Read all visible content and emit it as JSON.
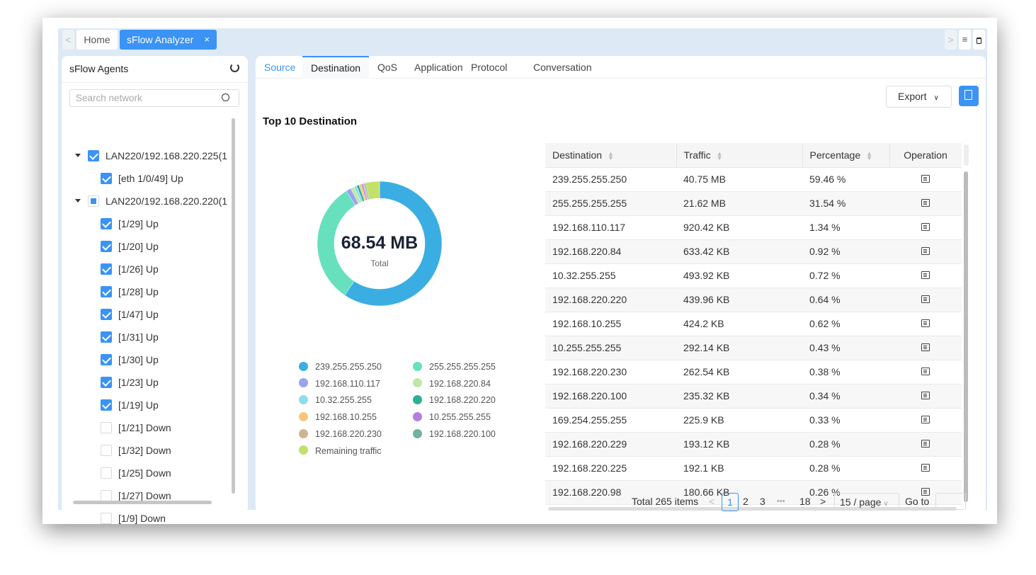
{
  "window_tabs": {
    "back": "<",
    "home": "Home",
    "active": "sFlow Analyzer",
    "close": "×",
    "forward": ">"
  },
  "sidebar": {
    "title": "sFlow Agents",
    "search_placeholder": "Search network",
    "tree": [
      {
        "label": "LAN220/192.168.220.225(1",
        "level": 1,
        "state": "checked",
        "expanded": true
      },
      {
        "label": "[eth 1/0/49] Up",
        "level": 2,
        "state": "checked"
      },
      {
        "label": "LAN220/192.168.220.220(1",
        "level": 1,
        "state": "partial",
        "expanded": true
      },
      {
        "label": "[1/29] Up",
        "level": 2,
        "state": "checked"
      },
      {
        "label": "[1/20] Up",
        "level": 2,
        "state": "checked"
      },
      {
        "label": "[1/26] Up",
        "level": 2,
        "state": "checked"
      },
      {
        "label": "[1/28] Up",
        "level": 2,
        "state": "checked"
      },
      {
        "label": "[1/47] Up",
        "level": 2,
        "state": "checked"
      },
      {
        "label": "[1/31] Up",
        "level": 2,
        "state": "checked"
      },
      {
        "label": "[1/30] Up",
        "level": 2,
        "state": "checked"
      },
      {
        "label": "[1/23] Up",
        "level": 2,
        "state": "checked"
      },
      {
        "label": "[1/19] Up",
        "level": 2,
        "state": "checked"
      },
      {
        "label": "[1/21] Down",
        "level": 2,
        "state": "unchecked"
      },
      {
        "label": "[1/32] Down",
        "level": 2,
        "state": "unchecked"
      },
      {
        "label": "[1/25] Down",
        "level": 2,
        "state": "unchecked"
      },
      {
        "label": "[1/27] Down",
        "level": 2,
        "state": "unchecked"
      },
      {
        "label": "[1/9] Down",
        "level": 2,
        "state": "unchecked"
      }
    ]
  },
  "main_tabs": [
    "Source",
    "Destination",
    "QoS",
    "Application",
    "Protocol",
    "Conversation"
  ],
  "active_tab": "Destination",
  "toolbar": {
    "export_label": "Export"
  },
  "chart_data": {
    "type": "pie",
    "title": "Top 10 Destination",
    "center_value": "68.54 MB",
    "center_label": "Total",
    "legend_placement": "bottom",
    "categories": [
      "239.255.255.250",
      "255.255.255.255",
      "192.168.110.117",
      "192.168.220.84",
      "10.32.255.255",
      "192.168.220.220",
      "192.168.10.255",
      "10.255.255.255",
      "192.168.220.230",
      "192.168.220.100",
      "Remaining traffic"
    ],
    "values": [
      59.46,
      31.54,
      1.34,
      0.92,
      0.72,
      0.64,
      0.62,
      0.43,
      0.38,
      0.34,
      3.61
    ],
    "colors": [
      "#3aaee2",
      "#66e0bd",
      "#9aa4ea",
      "#bfe8a8",
      "#8fdde8",
      "#2fae96",
      "#f8c77c",
      "#b57ee0",
      "#cdb594",
      "#6fb39a",
      "#c3e06a"
    ]
  },
  "table": {
    "columns": [
      "Destination",
      "Traffic",
      "Percentage",
      "Operation"
    ],
    "rows": [
      [
        "239.255.255.250",
        "40.75 MB",
        "59.46 %"
      ],
      [
        "255.255.255.255",
        "21.62 MB",
        "31.54 %"
      ],
      [
        "192.168.110.117",
        "920.42 KB",
        "1.34 %"
      ],
      [
        "192.168.220.84",
        "633.42 KB",
        "0.92 %"
      ],
      [
        "10.32.255.255",
        "493.92 KB",
        "0.72 %"
      ],
      [
        "192.168.220.220",
        "439.96 KB",
        "0.64 %"
      ],
      [
        "192.168.10.255",
        "424.2 KB",
        "0.62 %"
      ],
      [
        "10.255.255.255",
        "292.14 KB",
        "0.43 %"
      ],
      [
        "192.168.220.230",
        "262.54 KB",
        "0.38 %"
      ],
      [
        "192.168.220.100",
        "235.32 KB",
        "0.34 %"
      ],
      [
        "169.254.255.255",
        "225.9 KB",
        "0.33 %"
      ],
      [
        "192.168.220.229",
        "193.12 KB",
        "0.28 %"
      ],
      [
        "192.168.220.225",
        "192.1 KB",
        "0.28 %"
      ],
      [
        "192.168.220.98",
        "180.66 KB",
        "0.26 %"
      ]
    ]
  },
  "pagination": {
    "total": "Total 265 items",
    "pages": [
      "1",
      "2",
      "3",
      "•••",
      "18"
    ],
    "current": "1",
    "page_size": "15 / page",
    "goto_label": "Go to",
    "prev": "<",
    "next": ">"
  }
}
